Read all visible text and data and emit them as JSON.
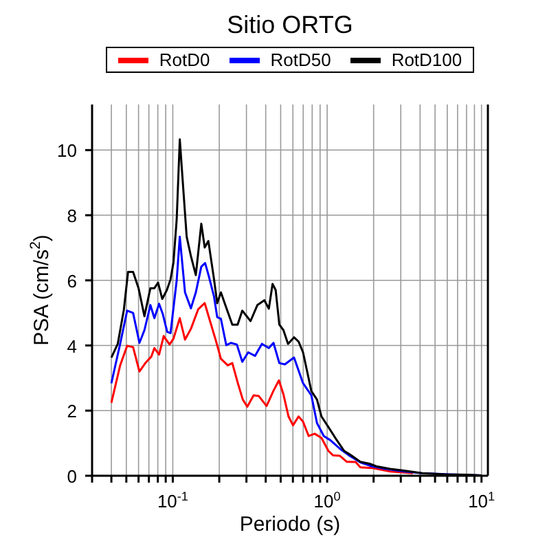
{
  "chart_data": {
    "type": "line",
    "title": "Sitio ORTG",
    "xlabel": "Periodo (s)",
    "ylabel": "PSA (cm/s$^{2}$)",
    "log": "x",
    "grid": true,
    "legend": "top",
    "line_style": "solid",
    "marker": "none",
    "xlim": [
      0.03,
      11
    ],
    "ylim": [
      0,
      11.4
    ],
    "yticks": [
      0,
      2,
      4,
      6,
      8,
      10
    ],
    "xticks": [
      {
        "value": 0.03,
        "label": null
      },
      {
        "value": 0.04,
        "label": null
      },
      {
        "value": 0.05,
        "label": null
      },
      {
        "value": 0.06,
        "label": null
      },
      {
        "value": 0.07,
        "label": null
      },
      {
        "value": 0.08,
        "label": null
      },
      {
        "value": 0.09,
        "label": null
      },
      {
        "value": 0.1,
        "label": "10$^{-1}$"
      },
      {
        "value": 0.2,
        "label": null
      },
      {
        "value": 0.3,
        "label": null
      },
      {
        "value": 0.4,
        "label": null
      },
      {
        "value": 0.5,
        "label": null
      },
      {
        "value": 0.6,
        "label": null
      },
      {
        "value": 0.7,
        "label": null
      },
      {
        "value": 0.8,
        "label": null
      },
      {
        "value": 0.9,
        "label": null
      },
      {
        "value": 1,
        "label": "10$^{0}$"
      },
      {
        "value": 2,
        "label": null
      },
      {
        "value": 3,
        "label": null
      },
      {
        "value": 4,
        "label": null
      },
      {
        "value": 5,
        "label": null
      },
      {
        "value": 6,
        "label": null
      },
      {
        "value": 7,
        "label": null
      },
      {
        "value": 8,
        "label": null
      },
      {
        "value": 9,
        "label": null
      },
      {
        "value": 10,
        "label": "10$^{1}$"
      }
    ],
    "series": [
      {
        "name": "RotD0",
        "color": "#ff0000",
        "x": [
          0.04,
          0.0456,
          0.0506,
          0.0553,
          0.0608,
          0.0664,
          0.0726,
          0.076,
          0.0815,
          0.0873,
          0.0953,
          0.101,
          0.111,
          0.12,
          0.131,
          0.146,
          0.161,
          0.172,
          0.191,
          0.205,
          0.227,
          0.243,
          0.263,
          0.284,
          0.304,
          0.334,
          0.36,
          0.405,
          0.449,
          0.487,
          0.521,
          0.562,
          0.601,
          0.653,
          0.698,
          0.759,
          0.83,
          0.919,
          1.02,
          1.09,
          1.21,
          1.34,
          1.53,
          1.64,
          1.95,
          2.56,
          3.59
        ],
        "values": [
          2.24,
          3.39,
          3.99,
          3.95,
          3.2,
          3.46,
          3.66,
          3.92,
          3.72,
          4.29,
          4.03,
          4.21,
          4.84,
          4.18,
          4.51,
          5.11,
          5.3,
          4.84,
          4.12,
          3.59,
          3.39,
          3.46,
          2.87,
          2.34,
          2.12,
          2.47,
          2.45,
          2.14,
          2.61,
          2.93,
          2.5,
          1.82,
          1.55,
          1.82,
          1.66,
          1.22,
          1.29,
          1.16,
          0.76,
          0.63,
          0.61,
          0.43,
          0.42,
          0.26,
          0.24,
          0.13,
          0.08
        ]
      },
      {
        "name": "RotD50",
        "color": "#0000ff",
        "x": [
          0.04,
          0.0456,
          0.0506,
          0.0553,
          0.0608,
          0.0655,
          0.0716,
          0.076,
          0.0815,
          0.0861,
          0.092,
          0.0967,
          0.106,
          0.111,
          0.12,
          0.131,
          0.141,
          0.153,
          0.162,
          0.172,
          0.185,
          0.194,
          0.205,
          0.222,
          0.238,
          0.26,
          0.282,
          0.308,
          0.341,
          0.378,
          0.419,
          0.449,
          0.49,
          0.532,
          0.61,
          0.698,
          0.79,
          0.859,
          0.951,
          1.05,
          1.21,
          1.38,
          1.64,
          1.95,
          2.39,
          3.14,
          4.12,
          6.21,
          10
        ],
        "values": [
          2.84,
          4.05,
          5.07,
          5.0,
          4.08,
          4.47,
          5.24,
          4.84,
          5.28,
          4.97,
          4.42,
          4.38,
          6.0,
          7.34,
          5.63,
          5.14,
          5.63,
          6.42,
          6.53,
          6.09,
          5.5,
          4.87,
          4.82,
          4.01,
          4.08,
          4.03,
          3.5,
          3.79,
          3.68,
          4.05,
          3.92,
          4.08,
          3.46,
          3.42,
          3.63,
          2.84,
          2.47,
          1.62,
          1.22,
          1.09,
          0.83,
          0.63,
          0.41,
          0.29,
          0.21,
          0.13,
          0.08,
          0.04,
          0.01
        ]
      },
      {
        "name": "RotD100",
        "color": "#000000",
        "x": [
          0.04,
          0.044,
          0.0482,
          0.0513,
          0.0553,
          0.06,
          0.0655,
          0.0716,
          0.076,
          0.0803,
          0.0855,
          0.0915,
          0.0967,
          0.101,
          0.106,
          0.111,
          0.117,
          0.123,
          0.131,
          0.141,
          0.153,
          0.161,
          0.17,
          0.185,
          0.194,
          0.205,
          0.219,
          0.243,
          0.263,
          0.282,
          0.319,
          0.353,
          0.392,
          0.419,
          0.443,
          0.464,
          0.49,
          0.521,
          0.558,
          0.61,
          0.653,
          0.698,
          0.79,
          0.859,
          0.919,
          1.02,
          1.13,
          1.29,
          1.43,
          1.64,
          1.88,
          2.08,
          2.56,
          3.14,
          4.12,
          5.8,
          8.15,
          10
        ],
        "values": [
          3.63,
          4.05,
          5.1,
          6.26,
          6.26,
          5.76,
          4.9,
          5.76,
          5.76,
          5.93,
          5.43,
          5.7,
          6.03,
          6.55,
          7.87,
          10.33,
          8.79,
          7.34,
          6.75,
          6.16,
          7.74,
          7.01,
          7.21,
          6.03,
          5.3,
          5.63,
          5.24,
          4.64,
          4.64,
          5.07,
          4.75,
          5.24,
          5.39,
          5.13,
          5.89,
          5.7,
          4.64,
          4.47,
          4.05,
          4.25,
          4.12,
          3.79,
          2.6,
          2.34,
          1.82,
          1.49,
          1.16,
          0.76,
          0.63,
          0.43,
          0.37,
          0.29,
          0.21,
          0.16,
          0.08,
          0.04,
          0.03,
          0.01
        ]
      }
    ]
  }
}
